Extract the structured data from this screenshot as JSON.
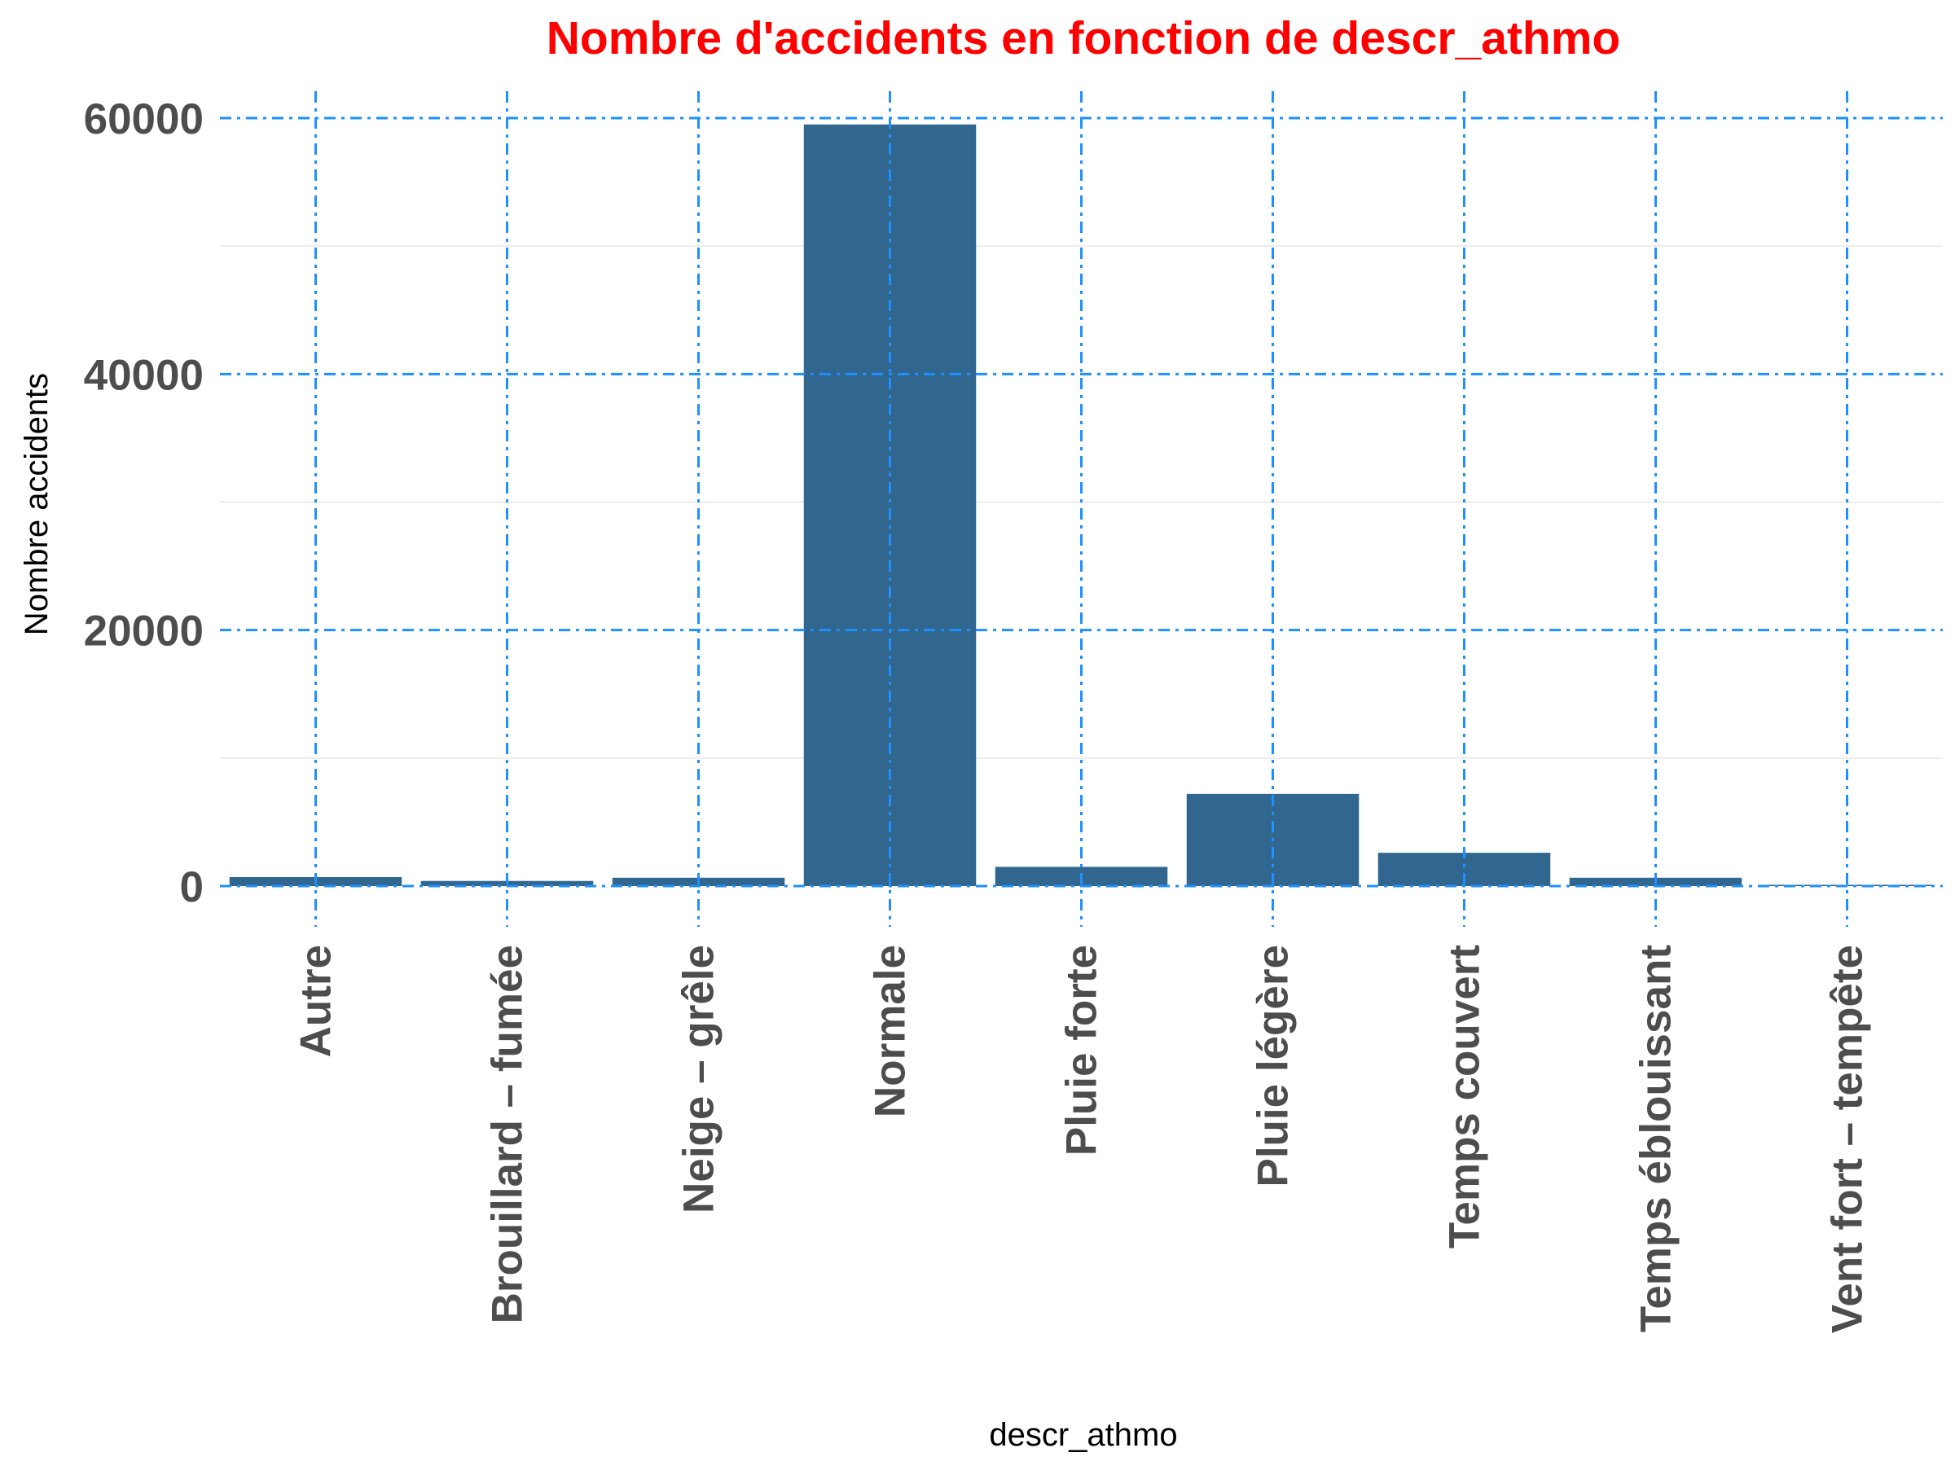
{
  "chart_data": {
    "type": "bar",
    "title": "Nombre d'accidents en fonction de descr_athmo",
    "xlabel": "descr_athmo",
    "ylabel": "Nombre accidents",
    "categories": [
      "Autre",
      "Brouillard – fumée",
      "Neige – grêle",
      "Normale",
      "Pluie forte",
      "Pluie légère",
      "Temps couvert",
      "Temps éblouissant",
      "Vent fort – tempête"
    ],
    "values": [
      700,
      400,
      650,
      59500,
      1500,
      7200,
      2600,
      650,
      100
    ],
    "ylim": [
      0,
      60000
    ],
    "yticks": [
      0,
      20000,
      40000,
      60000
    ],
    "ytick_labels": [
      "0",
      "20000",
      "40000",
      "60000"
    ],
    "grid": true,
    "colors": {
      "bar": "#31668f",
      "title": "#ff0000",
      "major_grid": "#1e90ff",
      "minor_grid": "#ebebeb",
      "tick_text": "#4d4d4d"
    }
  }
}
